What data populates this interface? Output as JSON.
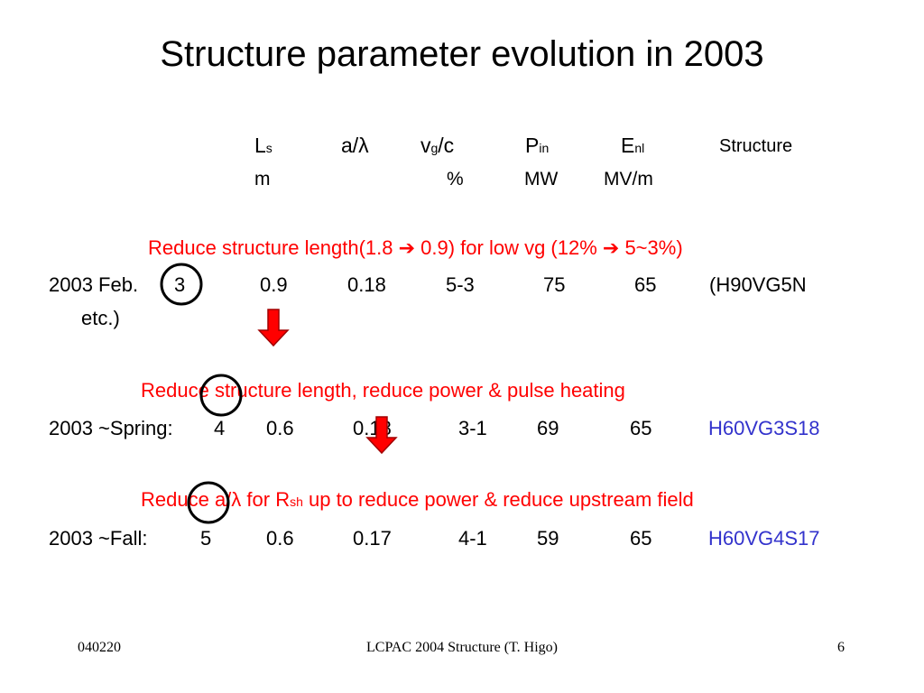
{
  "slide": {
    "title": "Structure parameter evolution in 2003",
    "header": {
      "ls_main": "L",
      "ls_sub": "s",
      "a_lambda": "a/λ",
      "vg_main": "v",
      "vg_sub": "g",
      "vg_tail": "/c",
      "pin_main": "P",
      "pin_sub": "in",
      "enl_main": "E",
      "enl_sub": "nl",
      "structure": "Structure"
    },
    "units": {
      "ls": "m",
      "vg": "%",
      "pin": "MW",
      "enl": "MV/m"
    },
    "steps": [
      {
        "note": "Reduce structure length(1.8 ➔ 0.9) for low vg (12% ➔ 5~3%)",
        "label": "2003 Feb.",
        "num": "3",
        "ls": "0.9",
        "a": "0.18",
        "vg": "5-3",
        "pin": "75",
        "enl": "65",
        "structure": "(H90VG5N",
        "structure_cont": "etc.)"
      },
      {
        "note": "Reduce structure length, reduce power & pulse heating",
        "label": "2003 ~Spring:",
        "num": "4",
        "ls": "0.6",
        "a": "0.18",
        "vg": "3-1",
        "pin": "69",
        "enl": "65",
        "structure": "H60VG3S18"
      },
      {
        "note_pre": "Reduce a/λ for R",
        "note_sub": "sh",
        "note_post": " up to reduce power & reduce upstream field",
        "label": "2003 ~Fall:",
        "num": "5",
        "ls": "0.6",
        "a": "0.17",
        "vg": "4-1",
        "pin": "59",
        "enl": "65",
        "structure": "H60VG4S17"
      }
    ],
    "footer": {
      "date": "040220",
      "center": "LCPAC 2004  Structure (T. Higo)",
      "page": "6"
    },
    "colors": {
      "note": "#ff0000",
      "structure_link": "#3333cc",
      "arrow": "#ff0000",
      "circle": "#000000"
    }
  }
}
